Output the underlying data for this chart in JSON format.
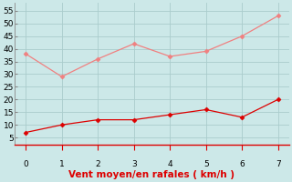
{
  "x": [
    0,
    1,
    2,
    3,
    4,
    5,
    6,
    7
  ],
  "y_rafales": [
    38,
    29,
    36,
    42,
    37,
    39,
    45,
    53
  ],
  "y_moyen": [
    7,
    10,
    12,
    12,
    14,
    16,
    13,
    20
  ],
  "color_rafales": "#f08080",
  "color_moyen": "#dd0000",
  "xlabel": "Vent moyen/en rafales ( km/h )",
  "ylim": [
    2,
    58
  ],
  "xlim": [
    -0.3,
    7.3
  ],
  "yticks": [
    5,
    10,
    15,
    20,
    25,
    30,
    35,
    40,
    45,
    50,
    55
  ],
  "xticks": [
    0,
    1,
    2,
    3,
    4,
    5,
    6,
    7
  ],
  "background_color": "#cce8e8",
  "grid_color": "#aacccc",
  "xlabel_color": "#dd0000",
  "xlabel_fontsize": 7.5,
  "tick_fontsize": 6.5,
  "marker": "D",
  "marker_size": 2.5,
  "line_width": 0.9
}
